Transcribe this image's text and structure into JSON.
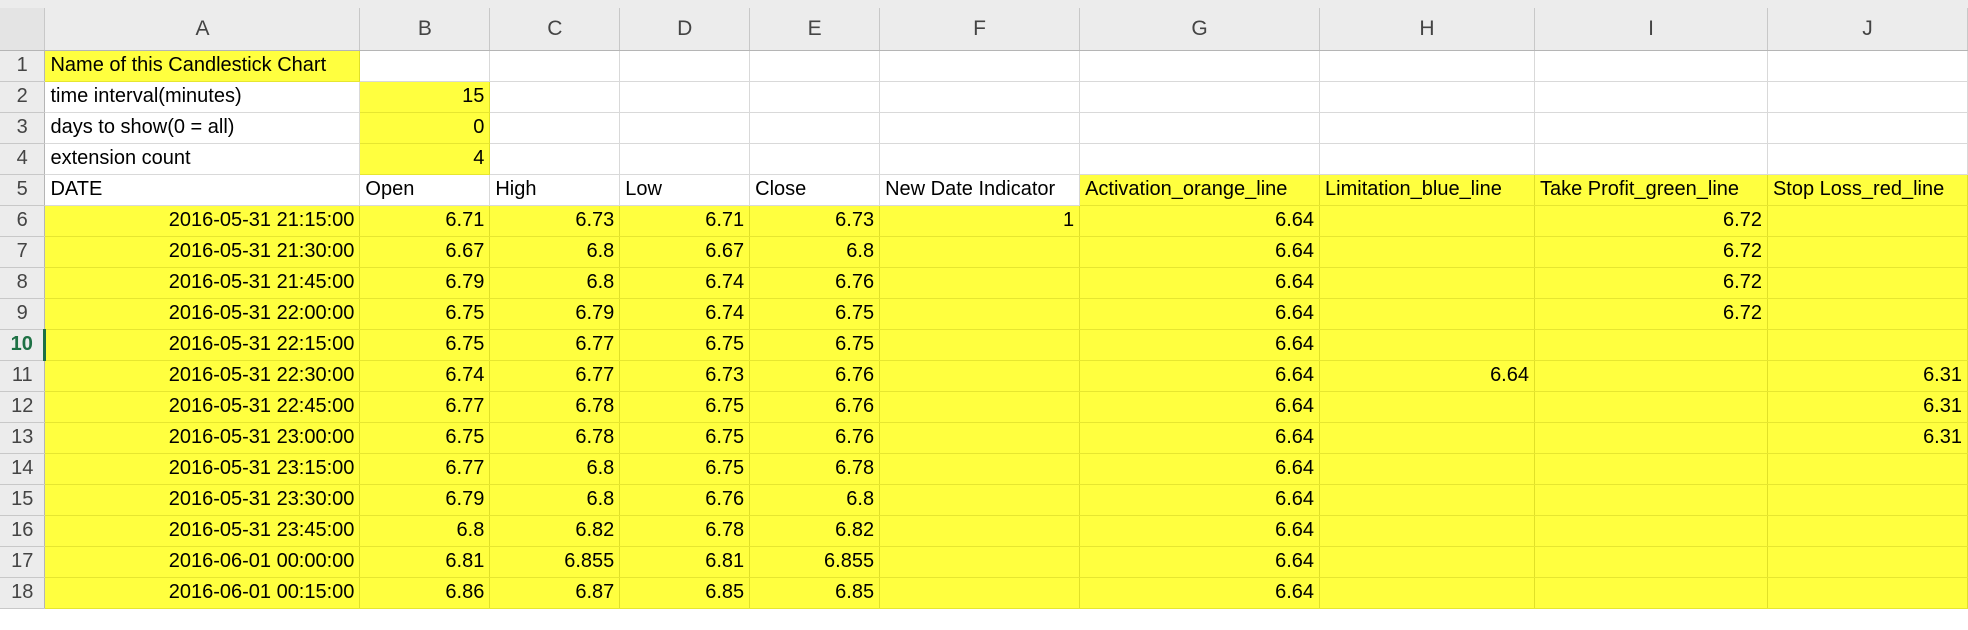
{
  "columns": [
    "A",
    "B",
    "C",
    "D",
    "E",
    "F",
    "G",
    "H",
    "I",
    "J"
  ],
  "rows": [
    {
      "num": "1",
      "cells": [
        "Name of this Candlestick Chart",
        "",
        "",
        "",
        "",
        "",
        "",
        "",
        "",
        ""
      ]
    },
    {
      "num": "2",
      "cells": [
        "time interval(minutes)",
        "15",
        "",
        "",
        "",
        "",
        "",
        "",
        "",
        ""
      ]
    },
    {
      "num": "3",
      "cells": [
        "days to show(0 = all)",
        "0",
        "",
        "",
        "",
        "",
        "",
        "",
        "",
        ""
      ]
    },
    {
      "num": "4",
      "cells": [
        "extension count",
        "4",
        "",
        "",
        "",
        "",
        "",
        "",
        "",
        ""
      ]
    },
    {
      "num": "5",
      "cells": [
        "DATE",
        "Open",
        "High",
        "Low",
        "Close",
        "New Date Indicator",
        "Activation_orange_line",
        "Limitation_blue_line",
        "Take Profit_green_line",
        "Stop Loss_red_line"
      ]
    },
    {
      "num": "6",
      "cells": [
        "2016-05-31 21:15:00",
        "6.71",
        "6.73",
        "6.71",
        "6.73",
        "1",
        "6.64",
        "",
        "6.72",
        ""
      ]
    },
    {
      "num": "7",
      "cells": [
        "2016-05-31 21:30:00",
        "6.67",
        "6.8",
        "6.67",
        "6.8",
        "",
        "6.64",
        "",
        "6.72",
        ""
      ]
    },
    {
      "num": "8",
      "cells": [
        "2016-05-31 21:45:00",
        "6.79",
        "6.8",
        "6.74",
        "6.76",
        "",
        "6.64",
        "",
        "6.72",
        ""
      ]
    },
    {
      "num": "9",
      "cells": [
        "2016-05-31 22:00:00",
        "6.75",
        "6.79",
        "6.74",
        "6.75",
        "",
        "6.64",
        "",
        "6.72",
        ""
      ]
    },
    {
      "num": "10",
      "cells": [
        "2016-05-31 22:15:00",
        "6.75",
        "6.77",
        "6.75",
        "6.75",
        "",
        "6.64",
        "",
        "",
        ""
      ]
    },
    {
      "num": "11",
      "cells": [
        "2016-05-31 22:30:00",
        "6.74",
        "6.77",
        "6.73",
        "6.76",
        "",
        "6.64",
        "6.64",
        "",
        "6.31"
      ]
    },
    {
      "num": "12",
      "cells": [
        "2016-05-31 22:45:00",
        "6.77",
        "6.78",
        "6.75",
        "6.76",
        "",
        "6.64",
        "",
        "",
        "6.31"
      ]
    },
    {
      "num": "13",
      "cells": [
        "2016-05-31 23:00:00",
        "6.75",
        "6.78",
        "6.75",
        "6.76",
        "",
        "6.64",
        "",
        "",
        "6.31"
      ]
    },
    {
      "num": "14",
      "cells": [
        "2016-05-31 23:15:00",
        "6.77",
        "6.8",
        "6.75",
        "6.78",
        "",
        "6.64",
        "",
        "",
        ""
      ]
    },
    {
      "num": "15",
      "cells": [
        "2016-05-31 23:30:00",
        "6.79",
        "6.8",
        "6.76",
        "6.8",
        "",
        "6.64",
        "",
        "",
        ""
      ]
    },
    {
      "num": "16",
      "cells": [
        "2016-05-31 23:45:00",
        "6.8",
        "6.82",
        "6.78",
        "6.82",
        "",
        "6.64",
        "",
        "",
        ""
      ]
    },
    {
      "num": "17",
      "cells": [
        "2016-06-01 00:00:00",
        "6.81",
        "6.855",
        "6.81",
        "6.855",
        "",
        "6.64",
        "",
        "",
        ""
      ]
    },
    {
      "num": "18",
      "cells": [
        "2016-06-01 00:15:00",
        "6.86",
        "6.87",
        "6.85",
        "6.85",
        "",
        "6.64",
        "",
        "",
        ""
      ]
    }
  ],
  "selected_row": "10",
  "colors": {
    "highlight": "#ffff3f",
    "header_bg": "#ececec",
    "active_header": "#1e7145"
  }
}
